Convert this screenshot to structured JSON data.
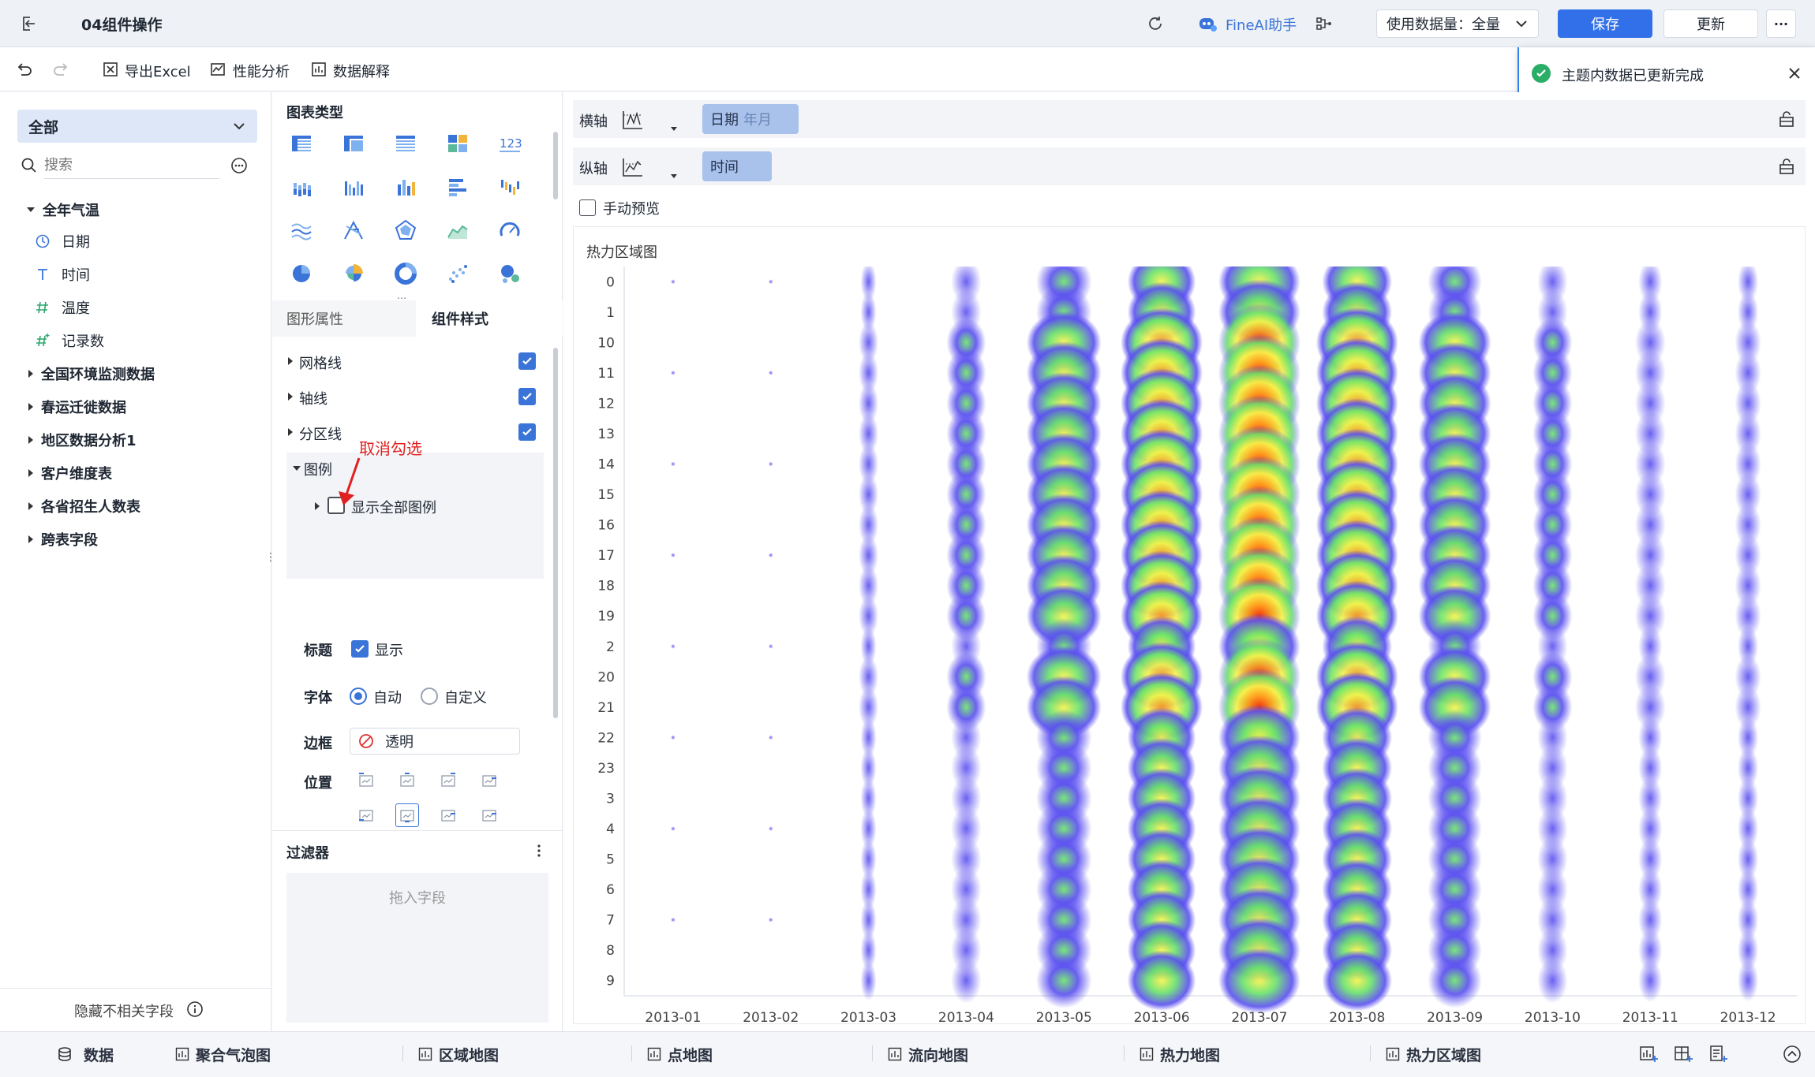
{
  "topbar": {
    "title": "04组件操作",
    "ai_label": "FineAI助手",
    "data_select": "使用数据量：全量",
    "save": "保存",
    "update": "更新",
    "more": "···"
  },
  "toolbar": {
    "export": "导出Excel",
    "perf": "性能分析",
    "explain": "数据解释"
  },
  "notification": {
    "text": "主题内数据已更新完成"
  },
  "left": {
    "dropdown": "全部",
    "search_placeholder": "搜索",
    "tree_root": "全年气温",
    "fields": [
      {
        "name": "日期",
        "icon": "clock-icon"
      },
      {
        "name": "时间",
        "icon": "text-type-icon"
      },
      {
        "name": "温度",
        "icon": "hash-icon"
      },
      {
        "name": "记录数",
        "icon": "hash-plus-icon"
      }
    ],
    "tables": [
      "全国环境监测数据",
      "春运迁徙数据",
      "地区数据分析1",
      "客户维度表",
      "各省招生人数表",
      "跨表字段"
    ],
    "hide_fields": "隐藏不相关字段"
  },
  "mid": {
    "chart_type_title": "图表类型",
    "tabs": [
      "图形属性",
      "组件样式"
    ],
    "sections": {
      "grid": "网格线",
      "axis": "轴线",
      "zone": "分区线",
      "legend": "图例",
      "show_all_legend": "显示全部图例"
    },
    "annotation": "取消勾选",
    "title_label": "标题",
    "title_show": "显示",
    "font_label": "字体",
    "font_auto": "自动",
    "font_custom": "自定义",
    "border_label": "边框",
    "border_value": "透明",
    "position_label": "位置",
    "filter_title": "过滤器",
    "filter_drop": "拖入字段"
  },
  "axes": {
    "x_label": "横轴",
    "x_field": "日期",
    "x_field_sub": "年月",
    "y_label": "纵轴",
    "y_field": "时间",
    "manual_preview": "手动预览"
  },
  "chart_data": {
    "type": "heatmap",
    "title": "热力区域图",
    "x": [
      "2013-01",
      "2013-02",
      "2013-03",
      "2013-04",
      "2013-05",
      "2013-06",
      "2013-07",
      "2013-08",
      "2013-09",
      "2013-10",
      "2013-11",
      "2013-12"
    ],
    "y": [
      "0",
      "1",
      "10",
      "11",
      "12",
      "13",
      "14",
      "15",
      "16",
      "17",
      "18",
      "19",
      "2",
      "20",
      "21",
      "22",
      "23",
      "3",
      "4",
      "5",
      "6",
      "7",
      "8",
      "9"
    ],
    "intensity_by_month": [
      0.02,
      0.02,
      0.12,
      0.3,
      0.62,
      0.78,
      0.95,
      0.8,
      0.6,
      0.3,
      0.22,
      0.18
    ],
    "color_scale": [
      "#5a4ff0",
      "#69e36a",
      "#f7f24a",
      "#ff9a1a",
      "#ff2200"
    ]
  },
  "bottom": {
    "data": "数据",
    "tabs": [
      "聚合气泡图",
      "区域地图",
      "点地图",
      "流向地图",
      "热力地图",
      "热力区域图"
    ]
  }
}
